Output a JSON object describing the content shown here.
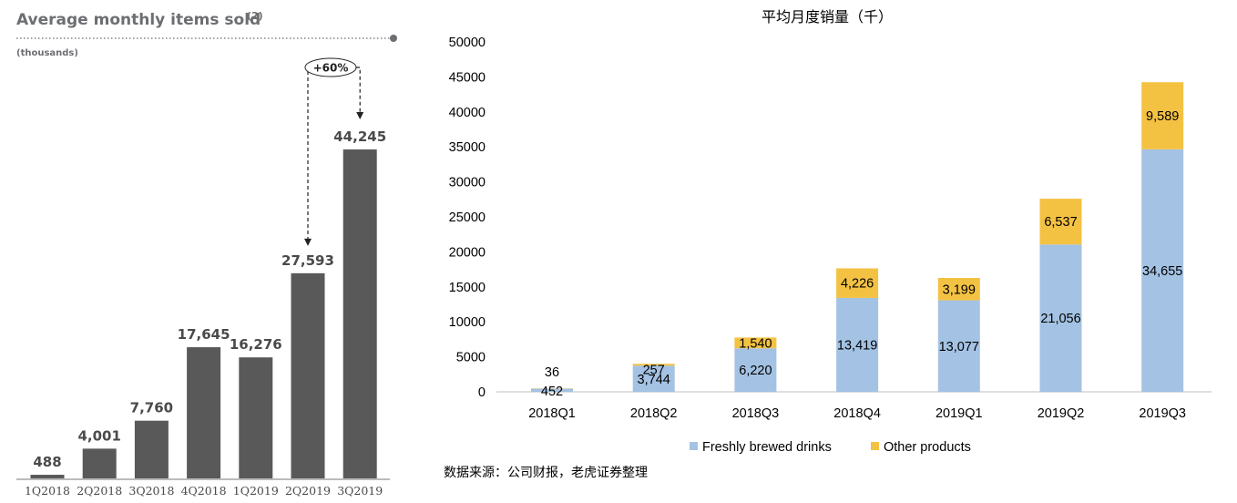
{
  "chart_data": [
    {
      "type": "bar",
      "title": "Average monthly items sold",
      "title_note": "(2)",
      "subtitle": "(thousands)",
      "categories": [
        "1Q2018",
        "2Q2018",
        "3Q2018",
        "4Q2018",
        "1Q2019",
        "2Q2019",
        "3Q2019"
      ],
      "values": [
        488,
        4001,
        7760,
        17645,
        16276,
        27593,
        44245
      ],
      "value_labels": [
        "488",
        "4,001",
        "7,760",
        "17,645",
        "16,276",
        "27,593",
        "44,245"
      ],
      "bar_color": "#595959",
      "annotation": {
        "text": "+60%",
        "from": "2Q2019",
        "to": "3Q2019"
      },
      "grid": false
    },
    {
      "type": "bar",
      "stacked": true,
      "title": "平均月度销量（千）",
      "categories": [
        "2018Q1",
        "2018Q2",
        "2018Q3",
        "2018Q4",
        "2019Q1",
        "2019Q2",
        "2019Q3"
      ],
      "series": [
        {
          "name": "Freshly brewed drinks",
          "color": "#a4c2e3",
          "values": [
            452,
            3744,
            6220,
            13419,
            13077,
            21056,
            34655
          ],
          "labels": [
            "452",
            "3,744",
            "6,220",
            "13,419",
            "13,077",
            "21,056",
            "34,655"
          ]
        },
        {
          "name": "Other products",
          "color": "#f4c243",
          "values": [
            36,
            257,
            1540,
            4226,
            3199,
            6537,
            9589
          ],
          "labels": [
            "36",
            "257",
            "1,540",
            "4,226",
            "3,199",
            "6,537",
            "9,589"
          ]
        }
      ],
      "yticks": [
        "0",
        "5000",
        "10000",
        "15000",
        "20000",
        "25000",
        "30000",
        "35000",
        "40000",
        "45000",
        "50000"
      ],
      "ylim": [
        0,
        50000
      ],
      "legend_position": "bottom",
      "grid": false
    }
  ],
  "source_note": "数据来源：公司财报，老虎证券整理"
}
